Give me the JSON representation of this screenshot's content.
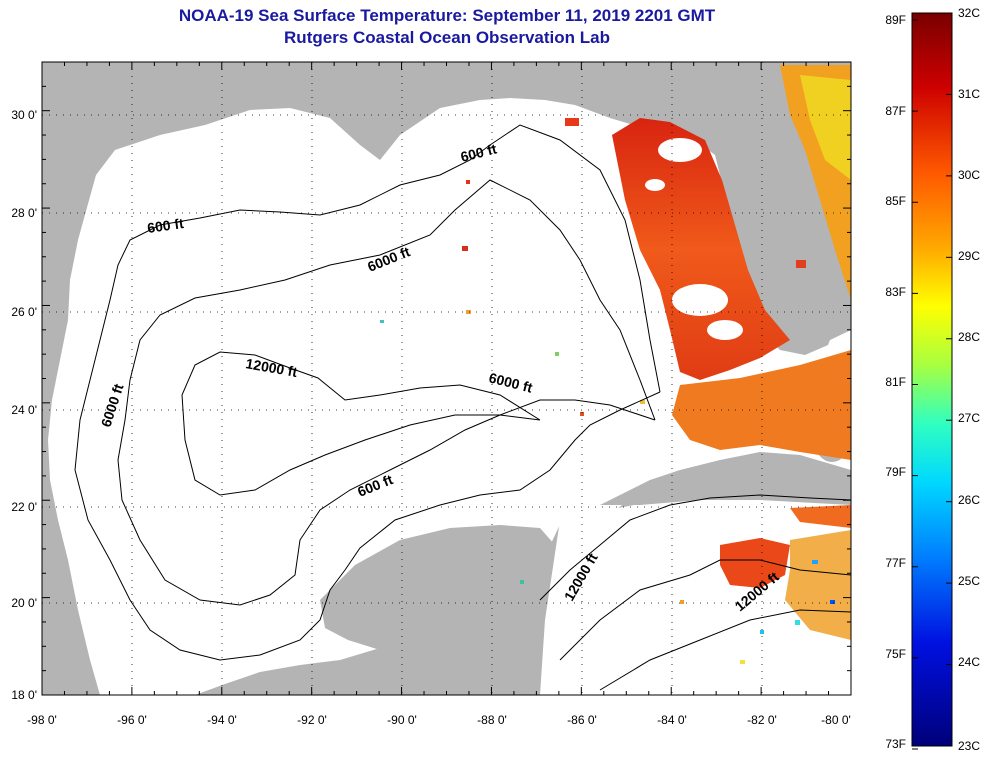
{
  "title": "NOAA-19 Sea Surface Temperature:  September 11, 2019 2201 GMT",
  "subtitle": "Rutgers Coastal Ocean Observation Lab",
  "map": {
    "lon_range": [
      -98,
      -80
    ],
    "lat_range": [
      18,
      31
    ],
    "x_ticks": [
      "-98 0'",
      "-96 0'",
      "-94 0'",
      "-92 0'",
      "-90 0'",
      "-88 0'",
      "-86 0'",
      "-84 0'",
      "-82 0'",
      "-80 0'"
    ],
    "y_ticks": [
      "30 0'",
      "28 0'",
      "26 0'",
      "24 0'",
      "22 0'",
      "20 0'",
      "18 0'"
    ],
    "contour_labels": [
      "600 ft",
      "600 ft",
      "600 ft",
      "6000 ft",
      "6000 ft",
      "6000 ft",
      "12000 ft",
      "12000 ft",
      "12000 ft"
    ],
    "colors": {
      "land": "#b4b4b4",
      "no_data": "#ffffff",
      "warm": "#e8401a"
    }
  },
  "colorbar": {
    "celsius": [
      "32C",
      "31C",
      "30C",
      "29C",
      "28C",
      "27C",
      "26C",
      "25C",
      "24C",
      "23C"
    ],
    "fahrenheit": [
      "89F",
      "87F",
      "85F",
      "83F",
      "81F",
      "79F",
      "77F",
      "75F",
      "73F"
    ]
  }
}
